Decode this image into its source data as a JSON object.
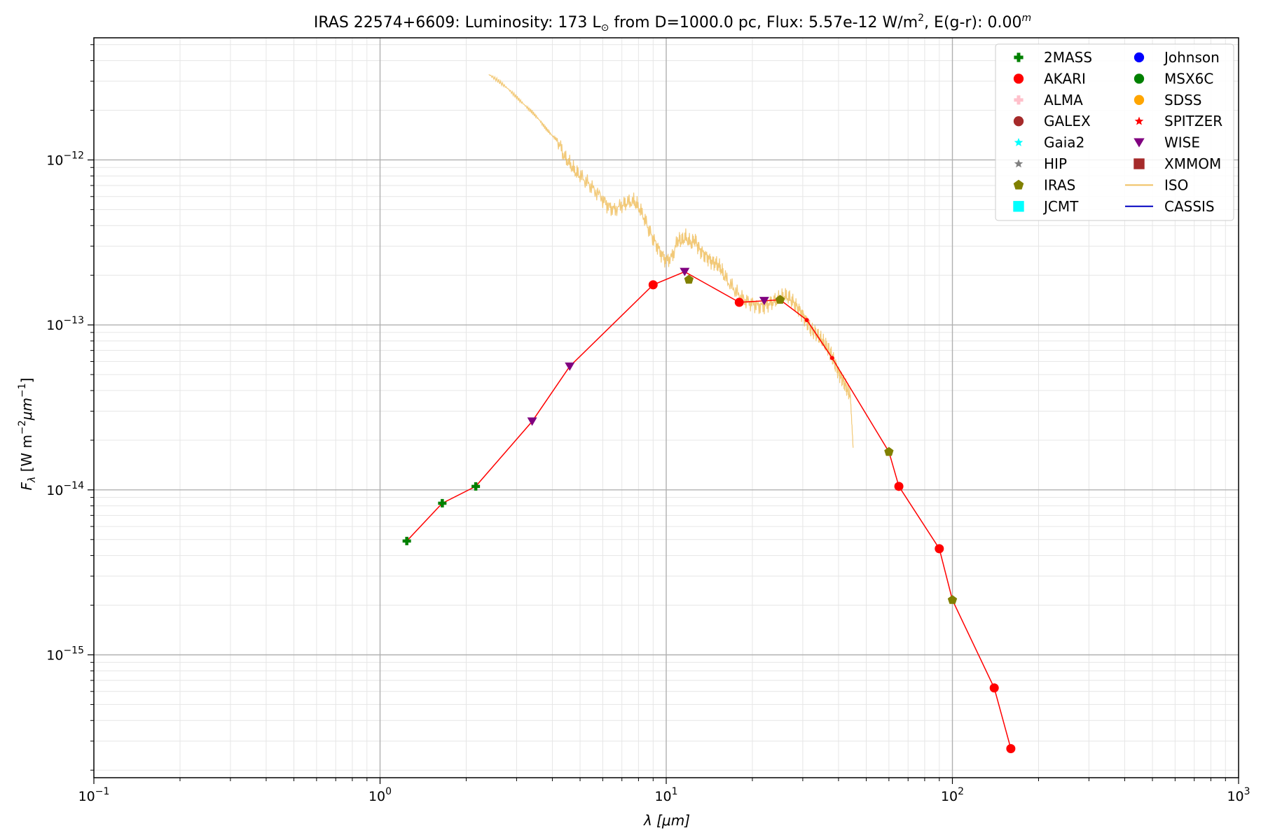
{
  "chart_data": {
    "type": "scatter",
    "title": {
      "object": "IRAS 22574+6609:",
      "lum_prefix": "Luminosity: 173 L",
      "lum_sub": "⊙",
      "dist": " from D=1000.0 pc, Flux: 5.57e-12 W/m",
      "flux_sup": "2",
      "ext": ", E(g-r): 0.00",
      "ext_sup": "m"
    },
    "xlabel": "λ [μm]",
    "ylabel": "F_λ [W m^-2 μm^-1]",
    "x_scale": "log",
    "y_scale": "log",
    "xlim": [
      0.1,
      1000
    ],
    "ylim": [
      1.8e-16,
      5.5e-12
    ],
    "grid": true,
    "legend_position": "top-right",
    "x_ticks": [
      {
        "value": 0.1,
        "base": "10",
        "exp": "−1"
      },
      {
        "value": 1,
        "base": "10",
        "exp": "0"
      },
      {
        "value": 10,
        "base": "10",
        "exp": "1"
      },
      {
        "value": 100,
        "base": "10",
        "exp": "2"
      },
      {
        "value": 1000,
        "base": "10",
        "exp": "3"
      }
    ],
    "y_ticks": [
      {
        "value": 1e-15,
        "base": "10",
        "exp": "−15"
      },
      {
        "value": 1e-14,
        "base": "10",
        "exp": "−14"
      },
      {
        "value": 1e-13,
        "base": "10",
        "exp": "−13"
      },
      {
        "value": 1e-12,
        "base": "10",
        "exp": "−12"
      }
    ],
    "legend": [
      {
        "name": "2MASS",
        "marker": "plus",
        "color": "#008000"
      },
      {
        "name": "AKARI",
        "marker": "circle",
        "color": "#ff0000"
      },
      {
        "name": "ALMA",
        "marker": "plus",
        "color": "#ffc0cb"
      },
      {
        "name": "GALEX",
        "marker": "circle",
        "color": "#a52a2a"
      },
      {
        "name": "Gaia2",
        "marker": "star",
        "color": "#00ffff"
      },
      {
        "name": "HIP",
        "marker": "star",
        "color": "#808080"
      },
      {
        "name": "IRAS",
        "marker": "pentagon",
        "color": "#808000"
      },
      {
        "name": "JCMT",
        "marker": "square",
        "color": "#00ffff"
      },
      {
        "name": "Johnson",
        "marker": "circle",
        "color": "#0000ff"
      },
      {
        "name": "MSX6C",
        "marker": "circle",
        "color": "#008000"
      },
      {
        "name": "SDSS",
        "marker": "circle",
        "color": "#ffa500"
      },
      {
        "name": "SPITZER",
        "marker": "star",
        "color": "#ff0000"
      },
      {
        "name": "WISE",
        "marker": "triangle-down",
        "color": "#800080"
      },
      {
        "name": "XMMOM",
        "marker": "square",
        "color": "#a52a2a"
      },
      {
        "name": "ISO",
        "marker": "line",
        "color": "#f0c060"
      },
      {
        "name": "CASSIS",
        "marker": "line",
        "color": "#0000c0"
      }
    ],
    "sed_line": {
      "color": "#ff0000",
      "x": [
        1.24,
        1.65,
        2.16,
        3.4,
        4.6,
        9.0,
        11.6,
        18.0,
        22.0,
        25.0,
        31.0,
        38.0,
        60.0,
        65.0,
        90.0,
        100.0,
        140.0,
        160.0
      ],
      "y": [
        4.9e-15,
        8.3e-15,
        1.05e-14,
        2.6e-14,
        5.6e-14,
        1.75e-13,
        2.1e-13,
        1.37e-13,
        1.4e-13,
        1.42e-13,
        1.07e-13,
        6.3e-14,
        1.7e-14,
        1.05e-14,
        4.4e-15,
        2.15e-15,
        6.3e-16,
        2.7e-16
      ]
    },
    "series": [
      {
        "name": "2MASS",
        "marker": "plus",
        "color": "#008000",
        "x": [
          1.24,
          1.65,
          2.16
        ],
        "y": [
          4.9e-15,
          8.3e-15,
          1.05e-14
        ]
      },
      {
        "name": "WISE",
        "marker": "triangle-down",
        "color": "#800080",
        "x": [
          3.4,
          4.6,
          11.6,
          22.0
        ],
        "y": [
          2.6e-14,
          5.6e-14,
          2.1e-13,
          1.4e-13
        ]
      },
      {
        "name": "AKARI",
        "marker": "circle",
        "color": "#ff0000",
        "x": [
          9.0,
          18.0,
          65.0,
          90.0,
          140.0,
          160.0
        ],
        "y": [
          1.75e-13,
          1.37e-13,
          1.05e-14,
          4.4e-15,
          6.3e-16,
          2.7e-16
        ]
      },
      {
        "name": "IRAS",
        "marker": "pentagon",
        "color": "#808000",
        "x": [
          12.0,
          25.0,
          60.0,
          100.0
        ],
        "y": [
          1.88e-13,
          1.42e-13,
          1.7e-14,
          2.15e-15
        ]
      },
      {
        "name": "SPITZER",
        "marker": "dot",
        "color": "#ff0000",
        "x": [
          31.0,
          38.0
        ],
        "y": [
          1.07e-13,
          6.3e-14
        ]
      }
    ],
    "iso_spectrum": {
      "name": "ISO",
      "color": "#f0c060",
      "x": [
        2.4,
        2.6,
        2.8,
        3.0,
        3.2,
        3.4,
        3.6,
        3.8,
        4.0,
        4.2,
        4.4,
        4.6,
        4.8,
        5.0,
        5.3,
        5.6,
        6.0,
        6.3,
        6.6,
        7.0,
        7.3,
        7.7,
        8.0,
        8.4,
        8.8,
        9.2,
        9.6,
        10.0,
        10.5,
        11.0,
        11.3,
        11.7,
        12.2,
        12.6,
        13.0,
        13.5,
        14.0,
        14.5,
        15.0,
        15.5,
        16.0,
        17.0,
        18.0,
        19.0,
        20.0,
        21.0,
        22.0,
        23.0,
        24.0,
        25.0,
        26.0,
        27.0,
        28.0,
        29.0,
        30.0,
        31.0,
        32.0,
        33.0,
        34.0,
        35.0,
        36.0,
        37.0,
        38.0,
        39.0,
        40.0,
        41.0,
        42.0,
        43.0,
        44.0,
        45.0
      ],
      "y": [
        3.3e-12,
        3e-12,
        2.7e-12,
        2.4e-12,
        2.15e-12,
        1.95e-12,
        1.75e-12,
        1.55e-12,
        1.4e-12,
        1.3e-12,
        1.05e-12,
        9.5e-13,
        8.5e-13,
        8e-13,
        7.3e-13,
        6.6e-13,
        5.8e-13,
        5.2e-13,
        5e-13,
        5.3e-13,
        5.5e-13,
        5.6e-13,
        5.2e-13,
        4.4e-13,
        3.6e-13,
        3.1e-13,
        2.7e-13,
        2.45e-13,
        2.6e-13,
        3.3e-13,
        3.2e-13,
        3.4e-13,
        3.1e-13,
        3.3e-13,
        2.9e-13,
        2.7e-13,
        2.55e-13,
        2.4e-13,
        2.35e-13,
        2.2e-13,
        1.95e-13,
        1.7e-13,
        1.5e-13,
        1.4e-13,
        1.35e-13,
        1.3e-13,
        1.3e-13,
        1.35e-13,
        1.4e-13,
        1.45e-13,
        1.5e-13,
        1.45e-13,
        1.35e-13,
        1.25e-13,
        1.15e-13,
        1.05e-13,
        9.5e-14,
        9e-14,
        8.5e-14,
        8e-14,
        7.5e-14,
        7e-14,
        6.5e-14,
        5.8e-14,
        5.2e-14,
        4.8e-14,
        4.4e-14,
        4e-14,
        3.7e-14,
        1.8e-14
      ]
    }
  }
}
